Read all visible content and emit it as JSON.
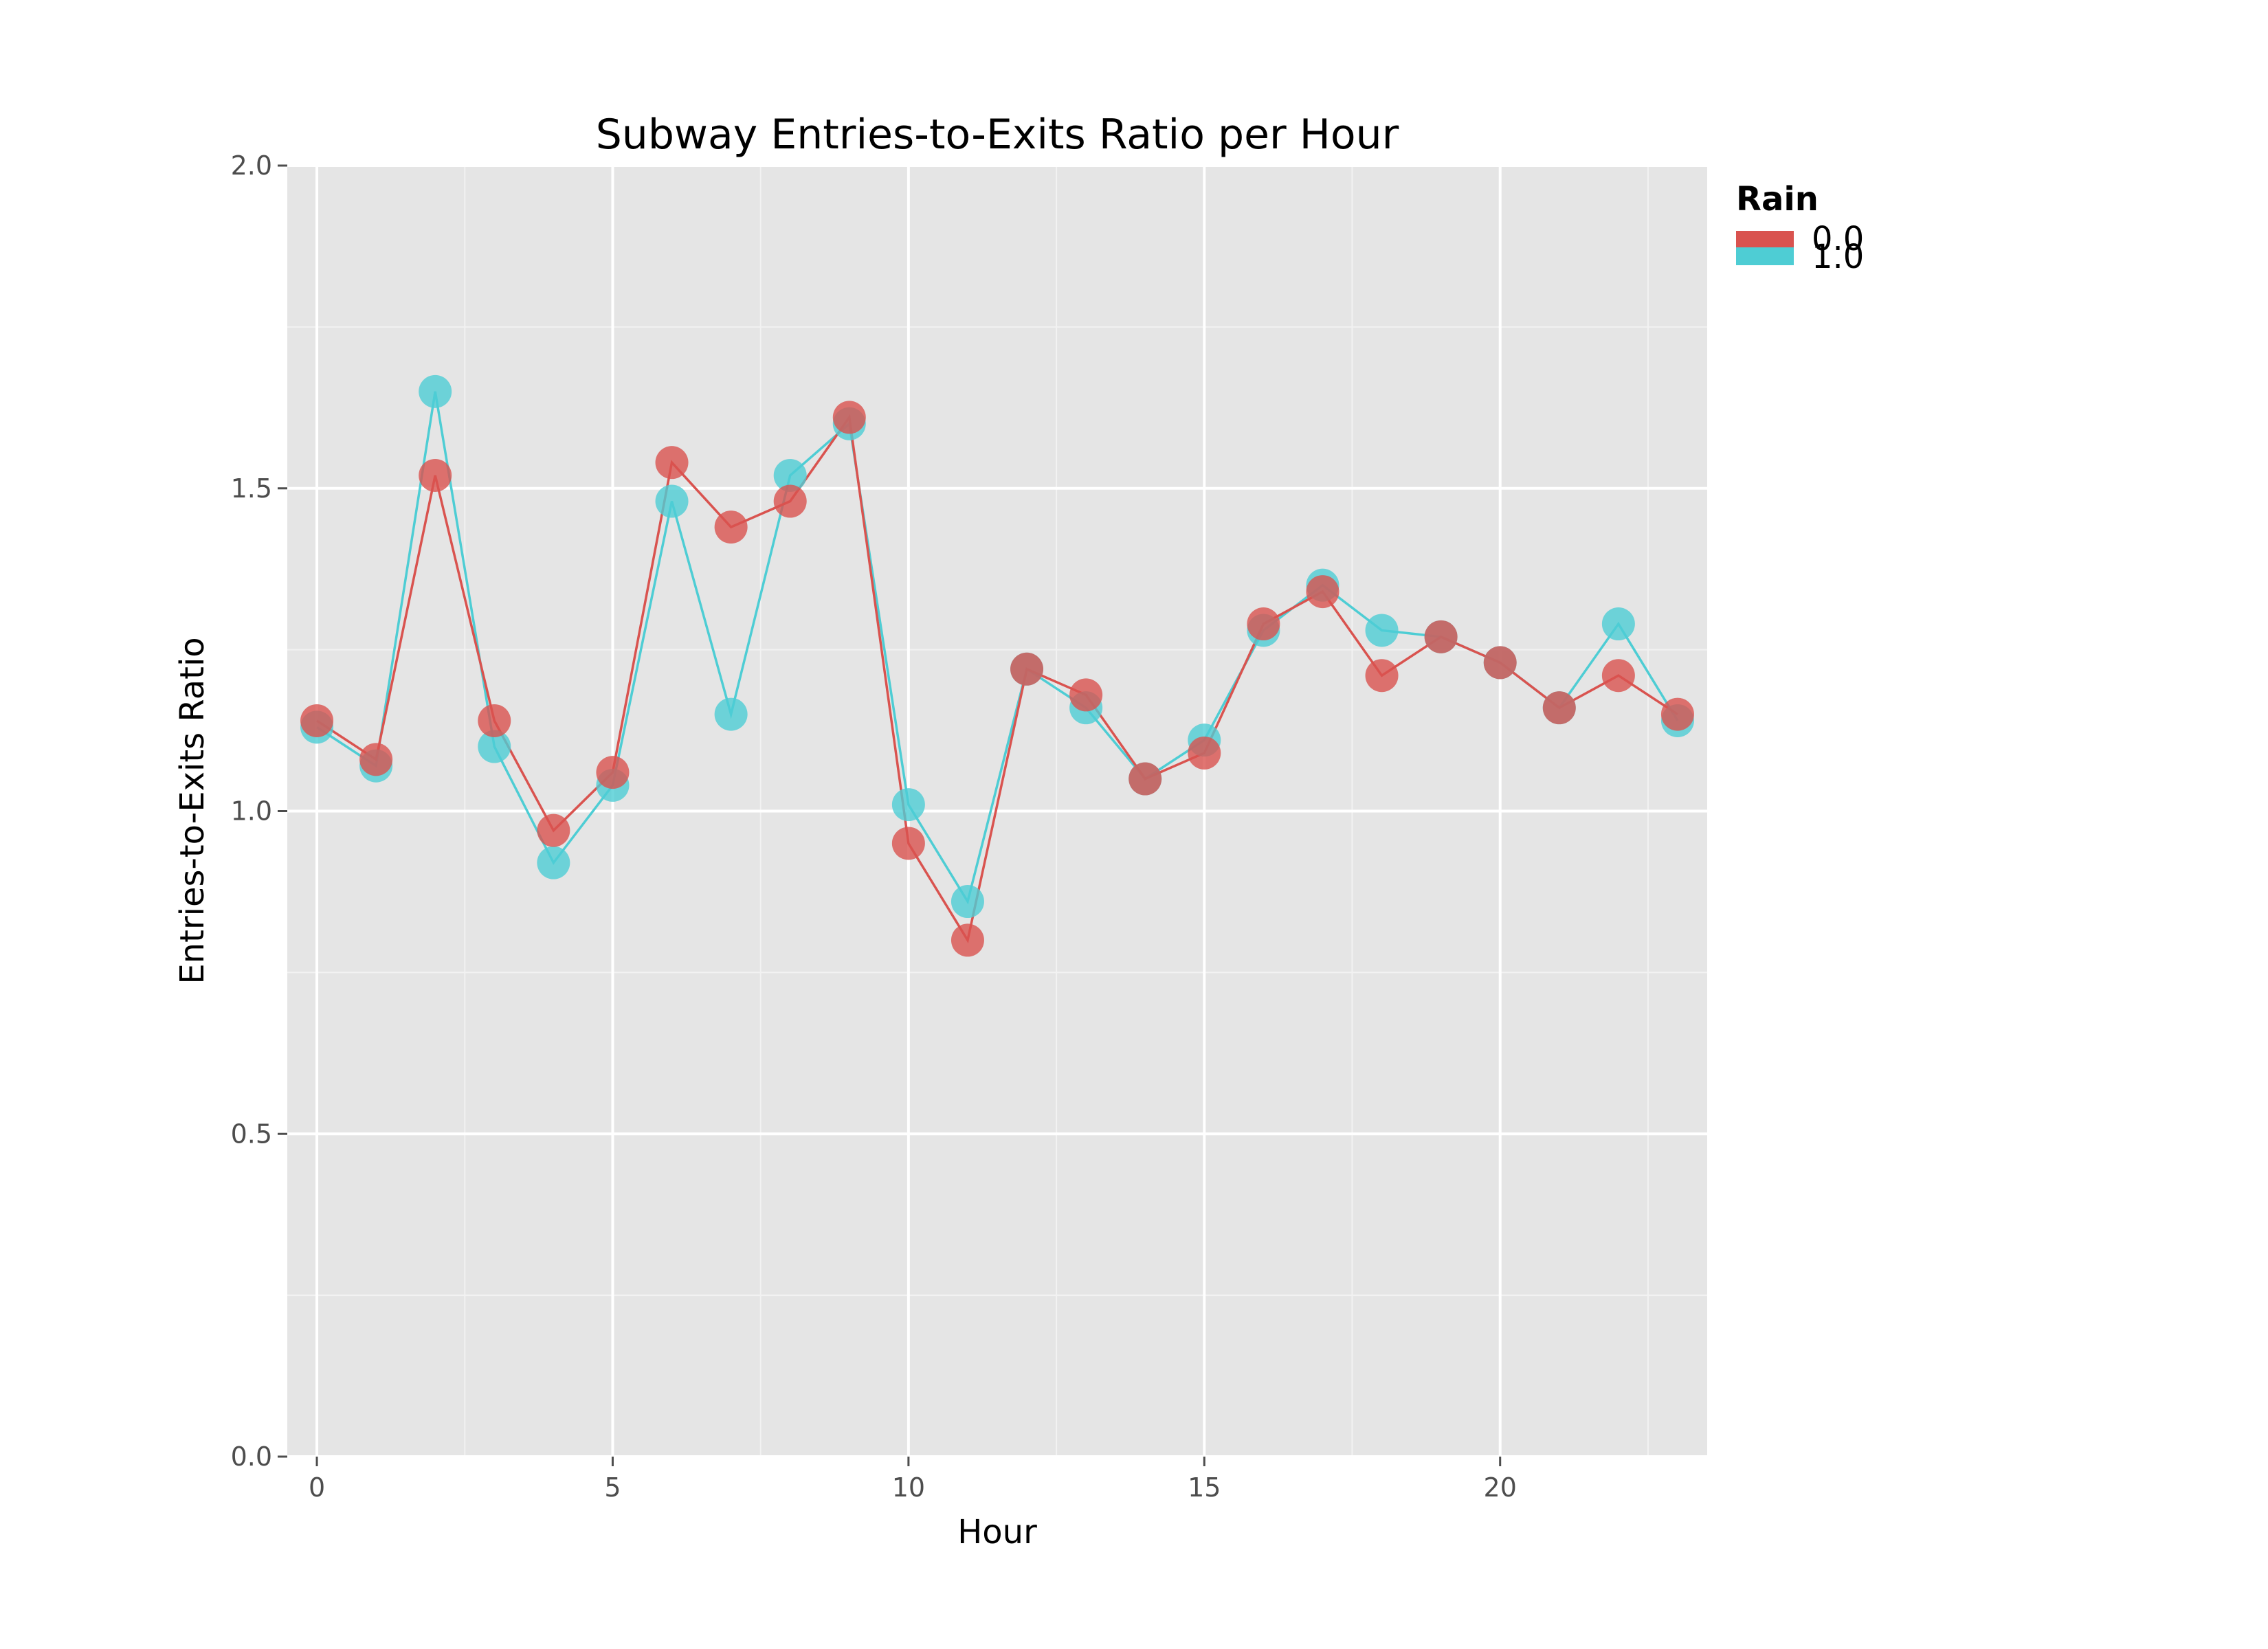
{
  "chart_data": {
    "type": "line",
    "title": "Subway Entries-to-Exits Ratio per Hour",
    "xlabel": "Hour",
    "ylabel": "Entries-to-Exits Ratio",
    "xlim": [
      -0.5,
      23.5
    ],
    "ylim": [
      0,
      2.0
    ],
    "x_ticks": [
      0,
      5,
      10,
      15,
      20
    ],
    "x_tick_labels": [
      "0",
      "5",
      "10",
      "15",
      "20"
    ],
    "y_ticks": [
      0,
      0.5,
      1.0,
      1.5,
      2.0
    ],
    "y_tick_labels": [
      "0.0",
      "0.5",
      "1.0",
      "1.5",
      "2.0"
    ],
    "grid": true,
    "legend": {
      "title": "Rain",
      "placement": "top-right outside"
    },
    "x": [
      0,
      1,
      2,
      3,
      4,
      5,
      6,
      7,
      8,
      9,
      10,
      11,
      12,
      13,
      14,
      15,
      16,
      17,
      18,
      19,
      20,
      21,
      22,
      23
    ],
    "series": [
      {
        "name": "0.0",
        "color": "#d9534f",
        "values": [
          1.14,
          1.08,
          1.52,
          1.14,
          0.97,
          1.06,
          1.54,
          1.44,
          1.48,
          1.61,
          0.95,
          0.8,
          1.22,
          1.18,
          1.05,
          1.09,
          1.29,
          1.34,
          1.21,
          1.27,
          1.23,
          1.16,
          1.21,
          1.15
        ]
      },
      {
        "name": "1.0",
        "color": "#4ecdd4",
        "values": [
          1.13,
          1.07,
          1.65,
          1.1,
          0.92,
          1.04,
          1.48,
          1.15,
          1.52,
          1.6,
          1.01,
          0.86,
          1.22,
          1.16,
          1.05,
          1.11,
          1.28,
          1.35,
          1.28,
          1.27,
          1.23,
          1.16,
          1.29,
          1.14
        ]
      }
    ]
  }
}
